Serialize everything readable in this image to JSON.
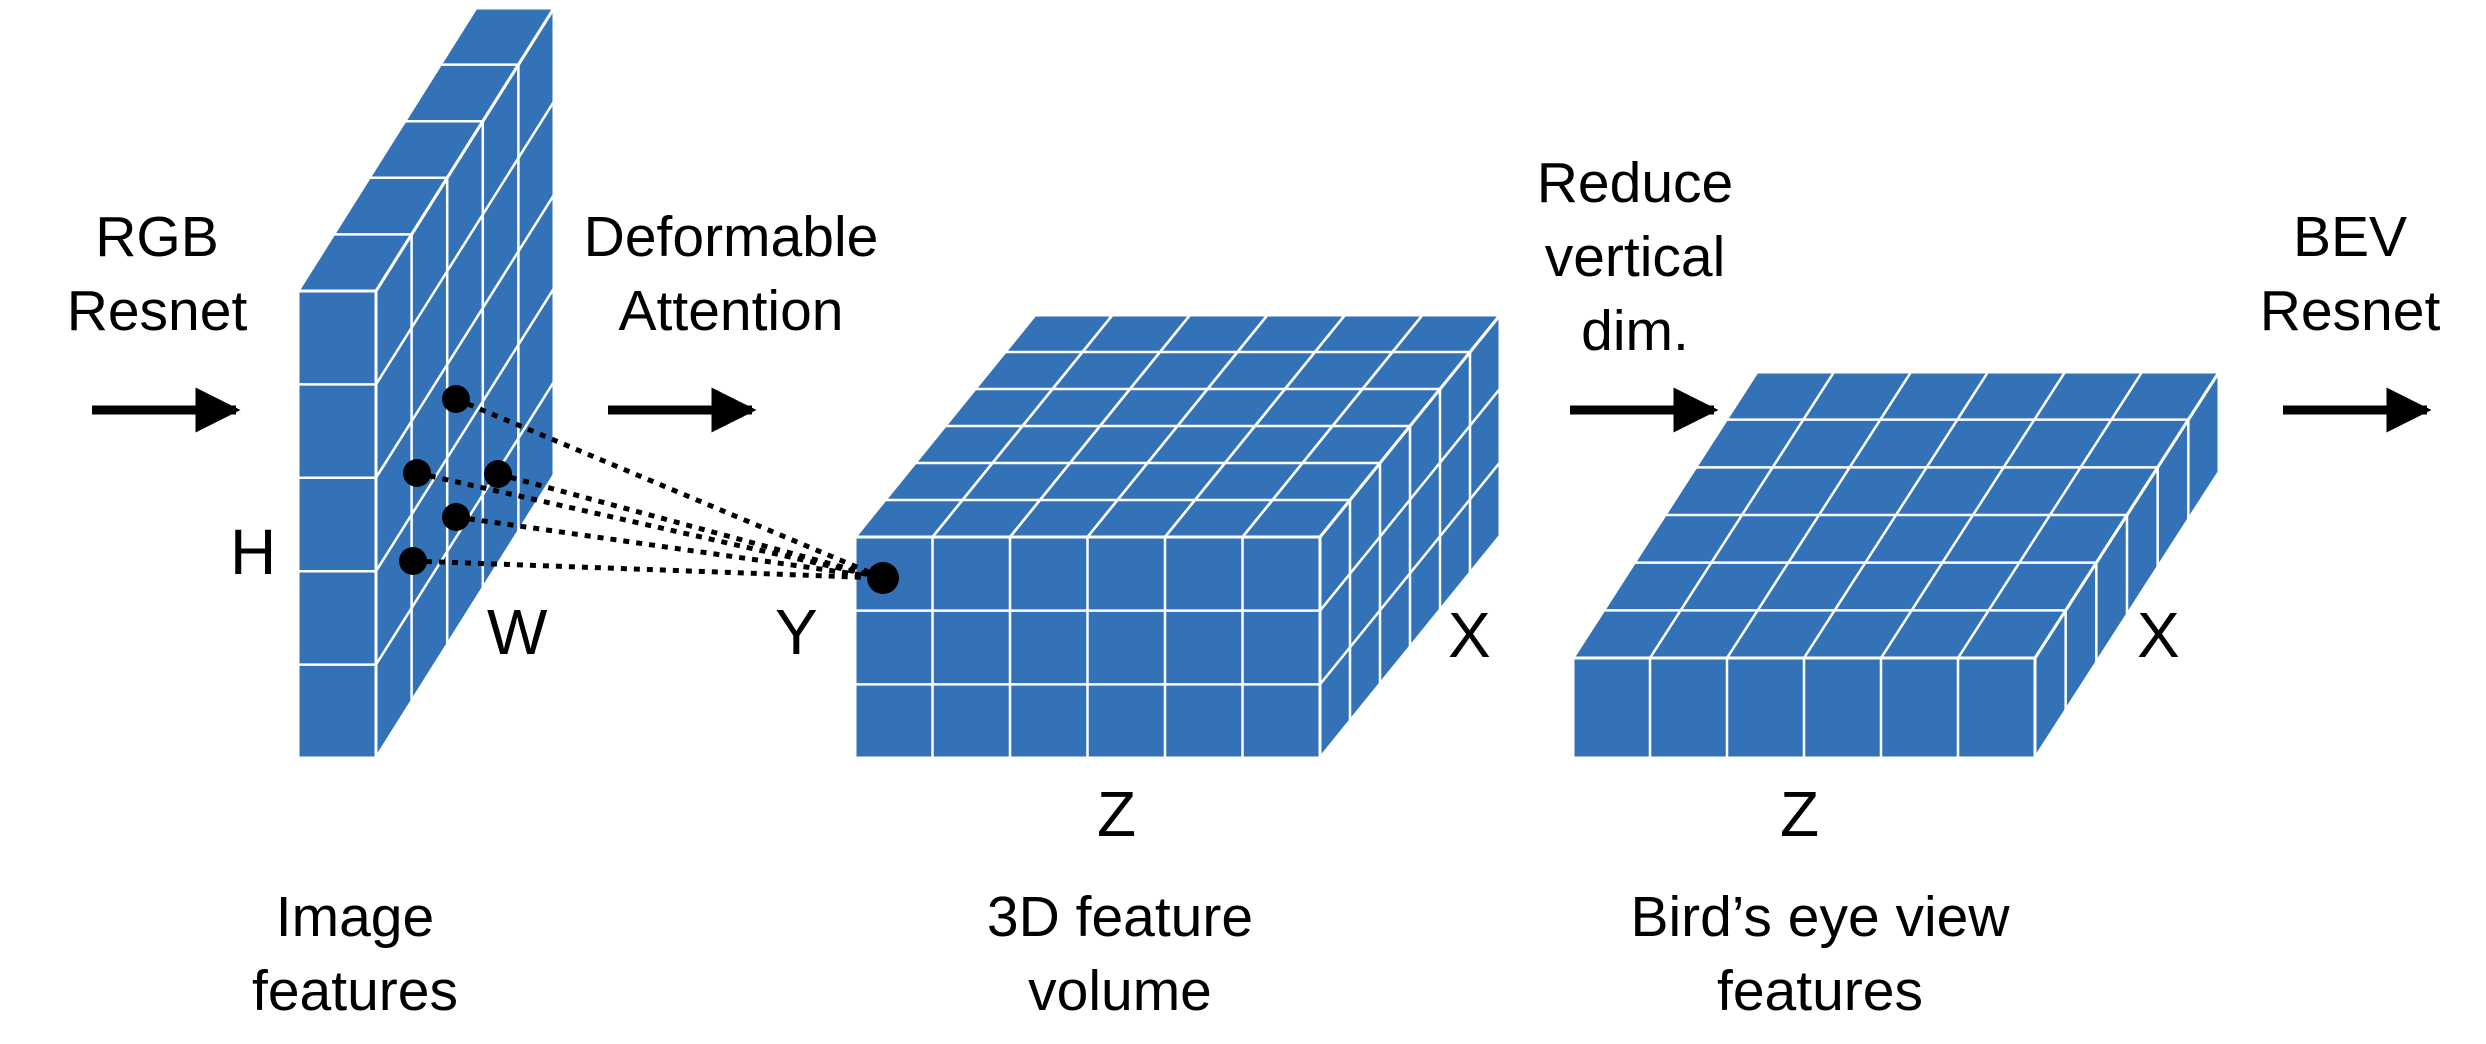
{
  "steps": {
    "rgb_resnet": [
      "RGB",
      "Resnet"
    ],
    "deformable_attention": [
      "Deformable",
      "Attention"
    ],
    "reduce_vertical": [
      "Reduce",
      "vertical",
      "dim."
    ],
    "bev_resnet": [
      "BEV",
      "Resnet"
    ]
  },
  "blocks": {
    "image_features": [
      "Image",
      "features"
    ],
    "feature_volume": [
      "3D feature",
      "volume"
    ],
    "bev_features": [
      "Bird’s eye view",
      "features"
    ]
  },
  "axes": {
    "image_h": "H",
    "image_w": "W",
    "volume_y": "Y",
    "volume_x": "X",
    "volume_z": "Z",
    "bev_x": "X",
    "bev_z": "Z"
  },
  "colors": {
    "block_fill": "#3472b8",
    "grid_line": "#ffffff",
    "arrow": "#000000",
    "sample_point": "#000000"
  }
}
